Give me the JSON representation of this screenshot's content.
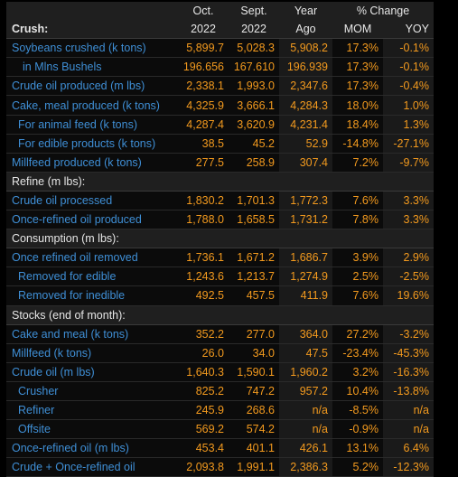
{
  "header": {
    "col1_top": "Oct.",
    "col1_bot": "2022",
    "col2_top": "Sept.",
    "col2_bot": "2022",
    "col3_top": "Year",
    "col3_bot": "Ago",
    "pct_change": "% Change",
    "mom": "MOM",
    "yoy": "YOY",
    "first_section": "Crush:"
  },
  "rows": [
    {
      "type": "data",
      "indent": 0,
      "label": "Soybeans crushed (k tons)",
      "v1": "5,899.7",
      "v2": "5,028.3",
      "v3": "5,908.2",
      "mom": "17.3%",
      "yoy": "-0.1%"
    },
    {
      "type": "data",
      "indent": 1,
      "label": "in Mlns Bushels",
      "v1": "196.656",
      "v2": "167.610",
      "v3": "196.939",
      "mom": "17.3%",
      "yoy": "-0.1%"
    },
    {
      "type": "data",
      "indent": 0,
      "label": "Crude oil produced (m lbs)",
      "v1": "2,338.1",
      "v2": "1,993.0",
      "v3": "2,347.6",
      "mom": "17.3%",
      "yoy": "-0.4%"
    },
    {
      "type": "data",
      "indent": 0,
      "label": "Cake, meal produced (k tons)",
      "v1": "4,325.9",
      "v2": "3,666.1",
      "v3": "4,284.3",
      "mom": "18.0%",
      "yoy": "1.0%"
    },
    {
      "type": "data",
      "indent": 2,
      "label": "For animal feed (k tons)",
      "v1": "4,287.4",
      "v2": "3,620.9",
      "v3": "4,231.4",
      "mom": "18.4%",
      "yoy": "1.3%"
    },
    {
      "type": "data",
      "indent": 2,
      "label": "For edible products (k tons)",
      "v1": "38.5",
      "v2": "45.2",
      "v3": "52.9",
      "mom": "-14.8%",
      "yoy": "-27.1%"
    },
    {
      "type": "data",
      "indent": 0,
      "label": "Millfeed produced (k tons)",
      "v1": "277.5",
      "v2": "258.9",
      "v3": "307.4",
      "mom": "7.2%",
      "yoy": "-9.7%"
    },
    {
      "type": "section",
      "label": "Refine (m lbs):"
    },
    {
      "type": "data",
      "indent": 0,
      "label": "Crude oil processed",
      "v1": "1,830.2",
      "v2": "1,701.3",
      "v3": "1,772.3",
      "mom": "7.6%",
      "yoy": "3.3%"
    },
    {
      "type": "data",
      "indent": 0,
      "label": "Once-refined oil produced",
      "v1": "1,788.0",
      "v2": "1,658.5",
      "v3": "1,731.2",
      "mom": "7.8%",
      "yoy": "3.3%"
    },
    {
      "type": "section",
      "label": "Consumption (m lbs):"
    },
    {
      "type": "data",
      "indent": 0,
      "label": "Once refined oil removed",
      "v1": "1,736.1",
      "v2": "1,671.2",
      "v3": "1,686.7",
      "mom": "3.9%",
      "yoy": "2.9%"
    },
    {
      "type": "data",
      "indent": 2,
      "label": "Removed for edible",
      "v1": "1,243.6",
      "v2": "1,213.7",
      "v3": "1,274.9",
      "mom": "2.5%",
      "yoy": "-2.5%"
    },
    {
      "type": "data",
      "indent": 2,
      "label": "Removed for inedible",
      "v1": "492.5",
      "v2": "457.5",
      "v3": "411.9",
      "mom": "7.6%",
      "yoy": "19.6%"
    },
    {
      "type": "section",
      "label": "Stocks (end of month):"
    },
    {
      "type": "data",
      "indent": 0,
      "label": "Cake and meal (k tons)",
      "v1": "352.2",
      "v2": "277.0",
      "v3": "364.0",
      "mom": "27.2%",
      "yoy": "-3.2%"
    },
    {
      "type": "data",
      "indent": 0,
      "label": "Millfeed (k tons)",
      "v1": "26.0",
      "v2": "34.0",
      "v3": "47.5",
      "mom": "-23.4%",
      "yoy": "-45.3%"
    },
    {
      "type": "data",
      "indent": 0,
      "label": "Crude oil (m lbs)",
      "v1": "1,640.3",
      "v2": "1,590.1",
      "v3": "1,960.2",
      "mom": "3.2%",
      "yoy": "-16.3%"
    },
    {
      "type": "data",
      "indent": 2,
      "label": "Crusher",
      "v1": "825.2",
      "v2": "747.2",
      "v3": "957.2",
      "mom": "10.4%",
      "yoy": "-13.8%"
    },
    {
      "type": "data",
      "indent": 2,
      "label": "Refiner",
      "v1": "245.9",
      "v2": "268.6",
      "v3": "n/a",
      "mom": "-8.5%",
      "yoy": "n/a"
    },
    {
      "type": "data",
      "indent": 2,
      "label": "Offsite",
      "v1": "569.2",
      "v2": "574.2",
      "v3": "n/a",
      "mom": "-0.9%",
      "yoy": "n/a"
    },
    {
      "type": "data",
      "indent": 0,
      "label": "Once-refined oil (m lbs)",
      "v1": "453.4",
      "v2": "401.1",
      "v3": "426.1",
      "mom": "13.1%",
      "yoy": "6.4%"
    },
    {
      "type": "data",
      "indent": 0,
      "label": "Crude + Once-refined oil",
      "v1": "2,093.8",
      "v2": "1,991.1",
      "v3": "2,386.3",
      "mom": "5.2%",
      "yoy": "-12.3%"
    }
  ],
  "colors": {
    "label": "#3f8fd6",
    "value": "#f39a1e",
    "header_text": "#e6e6e6",
    "header_bg": "#1f1f1f",
    "background": "#000000"
  }
}
